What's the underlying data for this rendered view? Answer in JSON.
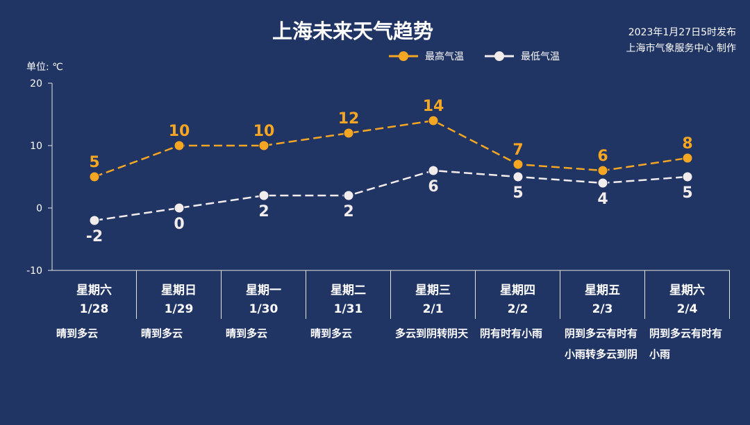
{
  "title": "上海未来天气趋势",
  "publish": {
    "line1": "2023年1月27日5时发布",
    "line2": "上海市气象服务中心 制作"
  },
  "unit_label": "单位: ℃",
  "colors": {
    "background": "#213564",
    "high": "#F5A623",
    "low": "#F3ECEC",
    "axis": "#E6E6E6"
  },
  "chart_data": {
    "type": "line",
    "ylim": [
      -10,
      20
    ],
    "yticks": [
      -10,
      0,
      10,
      20
    ],
    "categories": [
      "1/28",
      "1/29",
      "1/30",
      "1/31",
      "2/1",
      "2/2",
      "2/3",
      "2/4"
    ],
    "series": [
      {
        "name": "最高气温",
        "values": [
          5,
          10,
          10,
          12,
          14,
          7,
          6,
          8
        ]
      },
      {
        "name": "最低气温",
        "values": [
          -2,
          0,
          2,
          2,
          6,
          5,
          4,
          5
        ]
      }
    ]
  },
  "days": [
    {
      "weekday": "星期六",
      "date": "1/28",
      "weather": "晴到多云"
    },
    {
      "weekday": "星期日",
      "date": "1/29",
      "weather": "晴到多云"
    },
    {
      "weekday": "星期一",
      "date": "1/30",
      "weather": "晴到多云"
    },
    {
      "weekday": "星期二",
      "date": "1/31",
      "weather": "晴到多云"
    },
    {
      "weekday": "星期三",
      "date": "2/1",
      "weather": "多云到阴转阴天"
    },
    {
      "weekday": "星期四",
      "date": "2/2",
      "weather": "阴有时有小雨"
    },
    {
      "weekday": "星期五",
      "date": "2/3",
      "weather": "阴到多云有时有小雨转多云到阴"
    },
    {
      "weekday": "星期六",
      "date": "2/4",
      "weather": "阴到多云有时有小雨"
    }
  ]
}
